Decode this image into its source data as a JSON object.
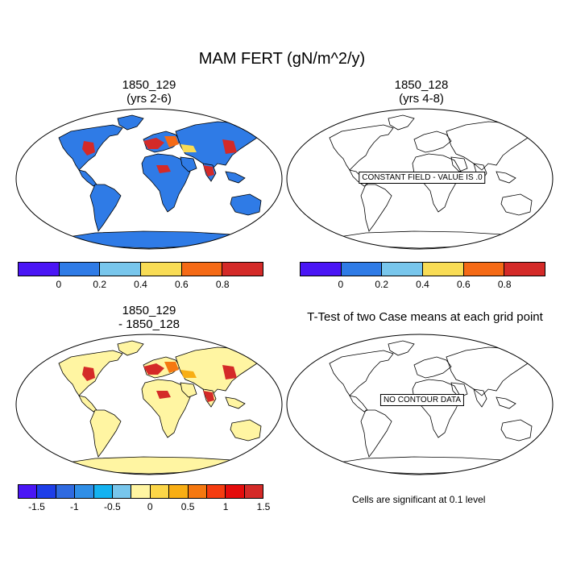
{
  "figure": {
    "title": "MAM FERT (gN/m^2/y)",
    "panels": {
      "top_left": {
        "title_line1": "1850_129",
        "title_line2": "(yrs 2-6)"
      },
      "top_right": {
        "title_line1": "1850_128",
        "title_line2": "(yrs 4-8)",
        "notice": "CONSTANT FIELD - VALUE IS .0"
      },
      "bottom_left": {
        "title_line1": "1850_129",
        "title_line2": "- 1850_128"
      },
      "bottom_right": {
        "title_line1": "T-Test of two Case means at each grid point",
        "notice": "NO CONTOUR DATA"
      }
    },
    "colorbar_top": {
      "colors": [
        "#4a16f5",
        "#2f7be6",
        "#78c6ec",
        "#f8dc55",
        "#f56a16",
        "#d42a28"
      ],
      "tick_labels": [
        "0",
        "0.2",
        "0.4",
        "0.6",
        "0.8"
      ]
    },
    "colorbar_bottom": {
      "colors": [
        "#4a16f5",
        "#1e3ee8",
        "#2f6ae0",
        "#2f8ee6",
        "#14b2f0",
        "#78c6ec",
        "#fff5a2",
        "#fcd648",
        "#f8ae14",
        "#f57810",
        "#f53c10",
        "#e40c0c",
        "#d42a28"
      ],
      "tick_labels": [
        "-1.5",
        "-1",
        "-0.5",
        "0",
        "0.5",
        "1",
        "1.5"
      ]
    },
    "footnote": "Cells are significant at 0.1 level",
    "map_colors": {
      "ocean": "#ffffff",
      "tl_land": "#2f7be6",
      "tl_hot": "#d42a28",
      "tl_warm": "#f56a16",
      "tl_mid": "#f8dc55",
      "bl_land": "#fff5a2",
      "bl_hot": "#d42a28",
      "bl_warm": "#f57810",
      "bl_mid": "#f8ae14"
    }
  }
}
